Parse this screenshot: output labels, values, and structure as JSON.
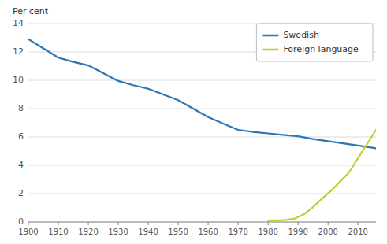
{
  "chart_data": {
    "type": "line",
    "y_label": "Per cent",
    "series": [
      {
        "name": "Swedish",
        "color": "#2E75B6",
        "x": [
          1900,
          1905,
          1910,
          1915,
          1920,
          1925,
          1930,
          1935,
          1940,
          1945,
          1950,
          1955,
          1960,
          1965,
          1970,
          1975,
          1980,
          1985,
          1990,
          1995,
          2000,
          2005,
          2010,
          2013,
          2016
        ],
        "values": [
          12.9,
          12.25,
          11.6,
          11.3,
          11.05,
          10.5,
          9.95,
          9.65,
          9.4,
          9.0,
          8.6,
          8.0,
          7.4,
          6.95,
          6.5,
          6.35,
          6.25,
          6.15,
          6.05,
          5.85,
          5.7,
          5.55,
          5.4,
          5.3,
          5.2
        ]
      },
      {
        "name": "Foreign language",
        "color": "#BFCE2C",
        "x": [
          1980,
          1983,
          1986,
          1989,
          1992,
          1995,
          1998,
          2001,
          2004,
          2007,
          2010,
          2013,
          2016
        ],
        "values": [
          0.1,
          0.12,
          0.15,
          0.25,
          0.55,
          1.05,
          1.65,
          2.2,
          2.85,
          3.5,
          4.5,
          5.5,
          6.5
        ]
      }
    ],
    "xlim": [
      1900,
      2016
    ],
    "xticks": [
      1900,
      1910,
      1920,
      1930,
      1940,
      1950,
      1960,
      1970,
      1980,
      1990,
      2000,
      2010
    ],
    "ylim": [
      0,
      14
    ],
    "yticks": [
      0,
      2,
      4,
      6,
      8,
      10,
      12,
      14
    ],
    "grid": true,
    "legend": "upper right"
  }
}
